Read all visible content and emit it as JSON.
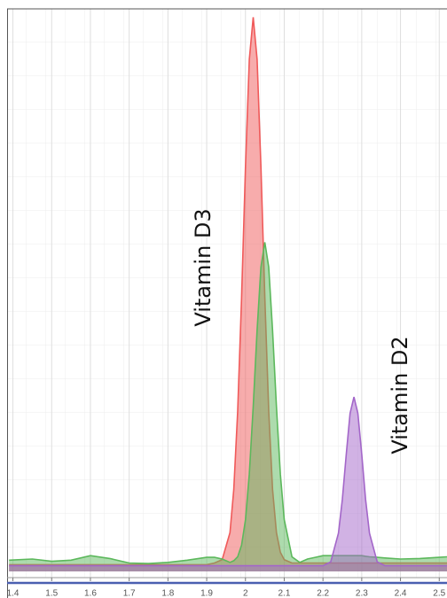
{
  "chart_data": {
    "type": "area",
    "annotations": [
      "Vitamin D3",
      "Vitamin D2"
    ],
    "x": [
      1.39,
      1.45,
      1.5,
      1.55,
      1.6,
      1.65,
      1.7,
      1.75,
      1.8,
      1.85,
      1.9,
      1.92,
      1.94,
      1.96,
      1.97,
      1.98,
      1.99,
      2.0,
      2.01,
      2.02,
      2.03,
      2.04,
      2.05,
      2.06,
      2.07,
      2.08,
      2.09,
      2.1,
      2.12,
      2.14,
      2.16,
      2.18,
      2.2,
      2.22,
      2.24,
      2.25,
      2.26,
      2.27,
      2.28,
      2.29,
      2.3,
      2.31,
      2.32,
      2.34,
      2.36,
      2.4,
      2.45,
      2.5,
      2.52
    ],
    "series": [
      {
        "color": "#f05a5a",
        "values": [
          1.2,
          1.2,
          1.2,
          1.2,
          1.2,
          1.2,
          1.2,
          1.2,
          1.2,
          1.2,
          1.2,
          1.5,
          2.1,
          6.9,
          14.6,
          28.5,
          48.7,
          72,
          91,
          98.5,
          91,
          72,
          48.7,
          28.5,
          14.6,
          6.9,
          3.4,
          2.1,
          1.5,
          1.5,
          1.5,
          1.5,
          1.5,
          1.5,
          1.5,
          1.5,
          1.5,
          1.5,
          1.5,
          1.5,
          1.5,
          1.5,
          1.5,
          1.5,
          1.5,
          1.5,
          1.5,
          1.5,
          1.5
        ]
      },
      {
        "color": "#5cb85c",
        "values": [
          2,
          2.2,
          1.8,
          2,
          2.8,
          2.3,
          1.5,
          1.4,
          1.6,
          2,
          2.5,
          2.5,
          2.2,
          1.6,
          1.9,
          2.6,
          4.7,
          9.2,
          17.3,
          29.3,
          42.9,
          54.1,
          58.5,
          54.1,
          42.9,
          29.3,
          17.3,
          9.2,
          2.6,
          1.6,
          2.2,
          2.5,
          2.8,
          2.8,
          2.8,
          2.8,
          2.8,
          2.8,
          2.8,
          2.8,
          2.8,
          2.7,
          2.6,
          2.5,
          2.4,
          2.2,
          2.3,
          2.5,
          2.6
        ]
      },
      {
        "color": "#a366c9",
        "values": [
          1,
          1,
          1,
          1,
          1,
          1,
          1,
          1,
          1,
          1,
          1,
          1,
          1,
          1,
          1,
          1,
          1,
          1,
          1,
          1,
          1,
          1,
          1,
          1,
          1,
          1,
          1,
          1,
          1,
          1,
          1,
          1,
          1,
          1.7,
          6.8,
          12.8,
          20.8,
          28.1,
          31,
          28.1,
          20.8,
          12.8,
          6.8,
          1.7,
          1,
          1,
          1,
          1,
          1
        ]
      }
    ],
    "xlim": [
      1.385,
      2.52
    ],
    "ylim": [
      0,
      100
    ],
    "xticks": [
      1.4,
      1.5,
      1.6,
      1.7,
      1.8,
      1.9,
      2,
      2.1,
      2.2,
      2.3,
      2.4,
      2.5
    ],
    "grid": true
  }
}
